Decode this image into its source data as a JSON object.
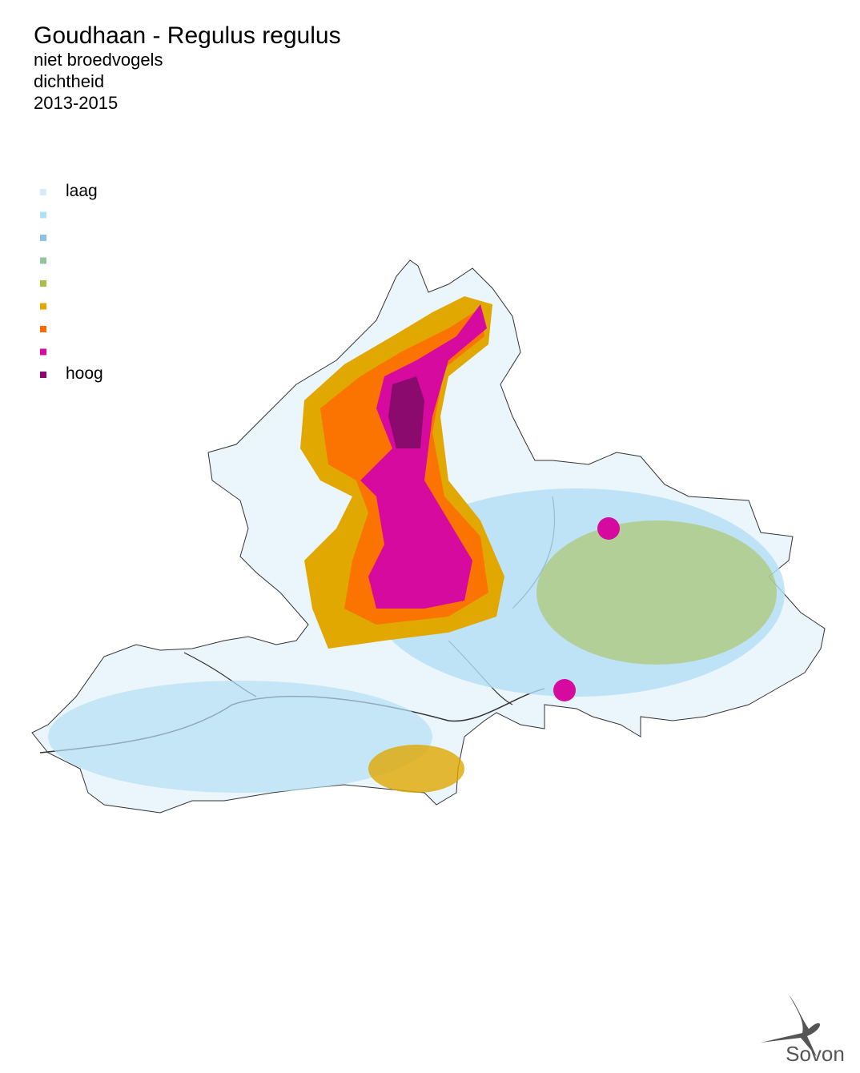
{
  "header": {
    "title": "Goudhaan - Regulus regulus",
    "subtitle_lines": [
      "niet broedvogels",
      "dichtheid",
      "2013-2015"
    ]
  },
  "legend": {
    "colors": [
      "#d6ecf8",
      "#b3dff5",
      "#8dc3e0",
      "#94c49b",
      "#a9bf4a",
      "#e0a800",
      "#ff6a00",
      "#d60a9e",
      "#8b0a6e"
    ],
    "low_label": "laag",
    "high_label": "hoog"
  },
  "logo": {
    "text": "Sovon"
  }
}
